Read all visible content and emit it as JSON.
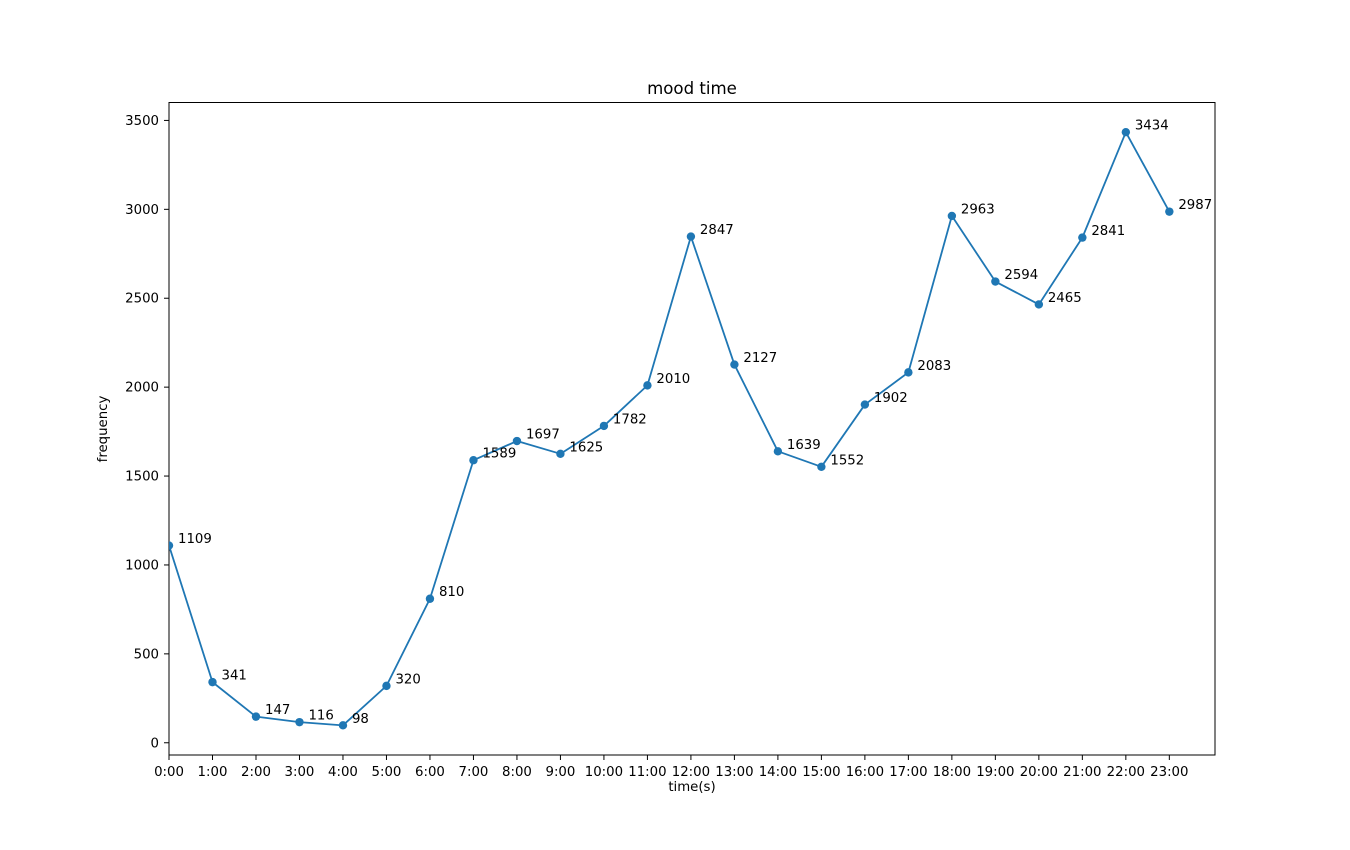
{
  "chart_data": {
    "type": "line",
    "title": "mood time",
    "xlabel": "time(s)",
    "ylabel": "frequency",
    "categories": [
      "0:00",
      "1:00",
      "2:00",
      "3:00",
      "4:00",
      "5:00",
      "6:00",
      "7:00",
      "8:00",
      "9:00",
      "10:00",
      "11:00",
      "12:00",
      "13:00",
      "14:00",
      "15:00",
      "16:00",
      "17:00",
      "18:00",
      "19:00",
      "20:00",
      "21:00",
      "22:00",
      "23:00"
    ],
    "values": [
      1109,
      341,
      147,
      116,
      98,
      320,
      810,
      1589,
      1697,
      1625,
      1782,
      2010,
      2847,
      2127,
      1639,
      1552,
      1902,
      2083,
      2963,
      2594,
      2465,
      2841,
      3434,
      2987
    ],
    "point_labels": [
      "1109",
      "341",
      "147",
      "116",
      "98",
      "320",
      "810",
      "1589",
      "1697",
      "1625",
      "1782",
      "2010",
      "2847",
      "2127",
      "1639",
      "1552",
      "1902",
      "2083",
      "2963",
      "2594",
      "2465",
      "2841",
      "3434",
      "2987"
    ],
    "yticks": [
      0,
      500,
      1000,
      1500,
      2000,
      2500,
      3000,
      3500
    ],
    "ylim": [
      -68.8,
      3600.8
    ],
    "xlim": [
      0,
      24.05
    ],
    "grid": false,
    "legend": null,
    "line_color": "#1f77b4",
    "marker": "circle",
    "spine_color": "#000000",
    "background_color": "#ffffff"
  }
}
